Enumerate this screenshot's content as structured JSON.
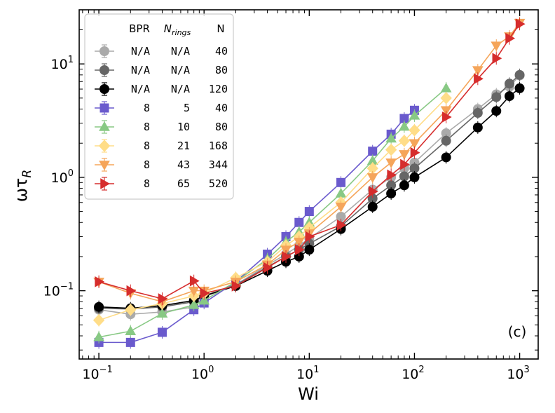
{
  "chart_data": {
    "type": "line",
    "xlabel": "Wi",
    "ylabel": "ωτ_R",
    "xscale": "log",
    "yscale": "log",
    "xlim": [
      0.065,
      1500
    ],
    "ylim": [
      0.025,
      30
    ],
    "x_ticks": [
      {
        "base": "10",
        "exp": "−1",
        "value": 0.1
      },
      {
        "base": "10",
        "exp": "0",
        "value": 1
      },
      {
        "base": "10",
        "exp": "1",
        "value": 10
      },
      {
        "base": "10",
        "exp": "2",
        "value": 100
      },
      {
        "base": "10",
        "exp": "3",
        "value": 1000
      }
    ],
    "y_ticks": [
      {
        "base": "10",
        "exp": "−1",
        "value": 0.1
      },
      {
        "base": "10",
        "exp": "0",
        "value": 1
      },
      {
        "base": "10",
        "exp": "1",
        "value": 10
      }
    ],
    "panel_label": "(c)",
    "legend": {
      "placement": "upper-left",
      "headers": {
        "bpr": "BPR",
        "nrings_base": "N",
        "nrings_sub": "rings",
        "n": "N"
      }
    },
    "series": [
      {
        "bpr": "N/A",
        "nrings": "N/A",
        "n": "40",
        "color": "#aaaaaa",
        "marker": "circle",
        "x": [
          0.1,
          0.2,
          0.4,
          0.8,
          1,
          2,
          4,
          6,
          8,
          10,
          20,
          40,
          60,
          80,
          100,
          200,
          400,
          600,
          800,
          1000
        ],
        "y": [
          0.068,
          0.062,
          0.065,
          0.072,
          0.088,
          0.113,
          0.168,
          0.21,
          0.25,
          0.29,
          0.45,
          0.78,
          1.0,
          1.2,
          1.35,
          2.45,
          4.0,
          5.4,
          6.3,
          7.9
        ]
      },
      {
        "bpr": "N/A",
        "nrings": "N/A",
        "n": "80",
        "color": "#666666",
        "marker": "circle",
        "x": [
          0.1,
          0.2,
          0.4,
          0.8,
          1,
          2,
          4,
          6,
          8,
          10,
          20,
          40,
          60,
          80,
          100,
          200,
          400,
          600,
          800,
          1000
        ],
        "y": [
          0.07,
          0.069,
          0.072,
          0.08,
          0.09,
          0.112,
          0.162,
          0.2,
          0.23,
          0.26,
          0.37,
          0.65,
          0.85,
          1.02,
          1.2,
          2.1,
          3.7,
          5.1,
          6.7,
          8.0
        ]
      },
      {
        "bpr": "N/A",
        "nrings": "N/A",
        "n": "120",
        "color": "#000000",
        "marker": "circle",
        "x": [
          0.1,
          0.2,
          0.4,
          0.8,
          1,
          2,
          4,
          6,
          8,
          10,
          20,
          40,
          60,
          80,
          100,
          200,
          400,
          600,
          800,
          1000
        ],
        "y": [
          0.072,
          0.07,
          0.074,
          0.082,
          0.09,
          0.11,
          0.15,
          0.18,
          0.2,
          0.23,
          0.35,
          0.55,
          0.72,
          0.85,
          1.0,
          1.5,
          2.75,
          3.85,
          5.2,
          6.1
        ]
      },
      {
        "bpr": "8",
        "nrings": "5",
        "n": "40",
        "color": "#6a5acd",
        "marker": "square",
        "x": [
          0.1,
          0.2,
          0.4,
          0.8,
          1,
          2,
          4,
          6,
          8,
          10,
          20,
          40,
          60,
          80,
          100
        ],
        "y": [
          0.035,
          0.035,
          0.043,
          0.068,
          0.078,
          0.12,
          0.21,
          0.3,
          0.4,
          0.5,
          0.9,
          1.7,
          2.4,
          3.3,
          3.9
        ]
      },
      {
        "bpr": "8",
        "nrings": "10",
        "n": "80",
        "color": "#88c984",
        "marker": "triangle-up",
        "x": [
          0.1,
          0.2,
          0.4,
          0.8,
          1,
          2,
          4,
          6,
          8,
          10,
          20,
          40,
          60,
          80,
          100,
          200
        ],
        "y": [
          0.039,
          0.044,
          0.063,
          0.075,
          0.082,
          0.12,
          0.19,
          0.27,
          0.33,
          0.4,
          0.72,
          1.4,
          2.2,
          2.8,
          3.5,
          6.1
        ]
      },
      {
        "bpr": "8",
        "nrings": "21",
        "n": "168",
        "color": "#ffdd88",
        "marker": "diamond",
        "x": [
          0.1,
          0.2,
          0.4,
          0.8,
          1,
          2,
          4,
          6,
          8,
          10,
          20,
          40,
          60,
          80,
          100,
          200
        ],
        "y": [
          0.055,
          0.068,
          0.077,
          0.09,
          0.095,
          0.13,
          0.18,
          0.25,
          0.3,
          0.36,
          0.6,
          1.2,
          1.75,
          2.1,
          2.6,
          5.0
        ]
      },
      {
        "bpr": "8",
        "nrings": "43",
        "n": "344",
        "color": "#f5a55a",
        "marker": "triangle-down",
        "x": [
          0.1,
          0.2,
          0.4,
          0.8,
          1,
          2,
          4,
          6,
          8,
          10,
          20,
          40,
          60,
          80,
          100,
          200,
          400,
          600,
          800,
          1000
        ],
        "y": [
          0.12,
          0.095,
          0.08,
          0.1,
          0.1,
          0.12,
          0.17,
          0.23,
          0.27,
          0.32,
          0.55,
          1.0,
          1.35,
          1.6,
          2.0,
          3.9,
          8.8,
          14.5,
          17.5,
          23.0
        ]
      },
      {
        "bpr": "8",
        "nrings": "65",
        "n": "520",
        "color": "#d62d2d",
        "marker": "triangle-right",
        "x": [
          0.1,
          0.2,
          0.4,
          0.8,
          1,
          2,
          4,
          6,
          8,
          10,
          20,
          40,
          60,
          80,
          100,
          200,
          400,
          600,
          800,
          1000
        ],
        "y": [
          0.12,
          0.1,
          0.085,
          0.122,
          0.095,
          0.11,
          0.16,
          0.2,
          0.23,
          0.3,
          0.38,
          0.75,
          1.05,
          1.3,
          1.65,
          3.4,
          7.4,
          11.2,
          16.8,
          22.5
        ]
      }
    ]
  }
}
